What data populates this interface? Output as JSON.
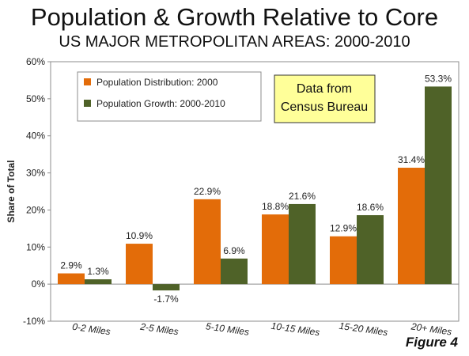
{
  "title": "Population & Growth Relative to Core",
  "subtitle": "US MAJOR METROPOLITAN AREAS: 2000-2010",
  "figure_label": "Figure 4",
  "note": {
    "lines": [
      "Data from",
      "Census Bureau"
    ],
    "bg": "#ffff99"
  },
  "colors": {
    "distribution": "#e36c09",
    "growth": "#4f6228"
  },
  "chart_data": {
    "type": "bar",
    "title": "Population & Growth Relative to Core",
    "subtitle": "US MAJOR METROPOLITAN AREAS: 2000-2010",
    "ylabel": "Share of Total",
    "xlabel": "",
    "categories": [
      "0-2 Miles",
      "2-5 Miles",
      "5-10 Miles",
      "10-15 Miles",
      "15-20 Miles",
      "20+ Miles"
    ],
    "series": [
      {
        "name": "Population Distribution: 2000",
        "values": [
          2.9,
          10.9,
          22.9,
          18.8,
          12.9,
          31.4
        ],
        "labels": [
          "2.9%",
          "10.9%",
          "22.9%",
          "18.8%",
          "12.9%",
          "31.4%"
        ]
      },
      {
        "name": "Population Growth: 2000-2010",
        "values": [
          1.3,
          -1.7,
          6.9,
          21.6,
          18.6,
          53.3
        ],
        "labels": [
          "1.3%",
          "-1.7%",
          "6.9%",
          "21.6%",
          "18.6%",
          "53.3%"
        ]
      }
    ],
    "ylim": [
      -10,
      60
    ],
    "yticks": [
      -10,
      0,
      10,
      20,
      30,
      40,
      50,
      60
    ],
    "ytick_labels": [
      "-10%",
      "0%",
      "10%",
      "20%",
      "30%",
      "40%",
      "50%",
      "60%"
    ],
    "legend_position": "top-left",
    "grid": false
  }
}
